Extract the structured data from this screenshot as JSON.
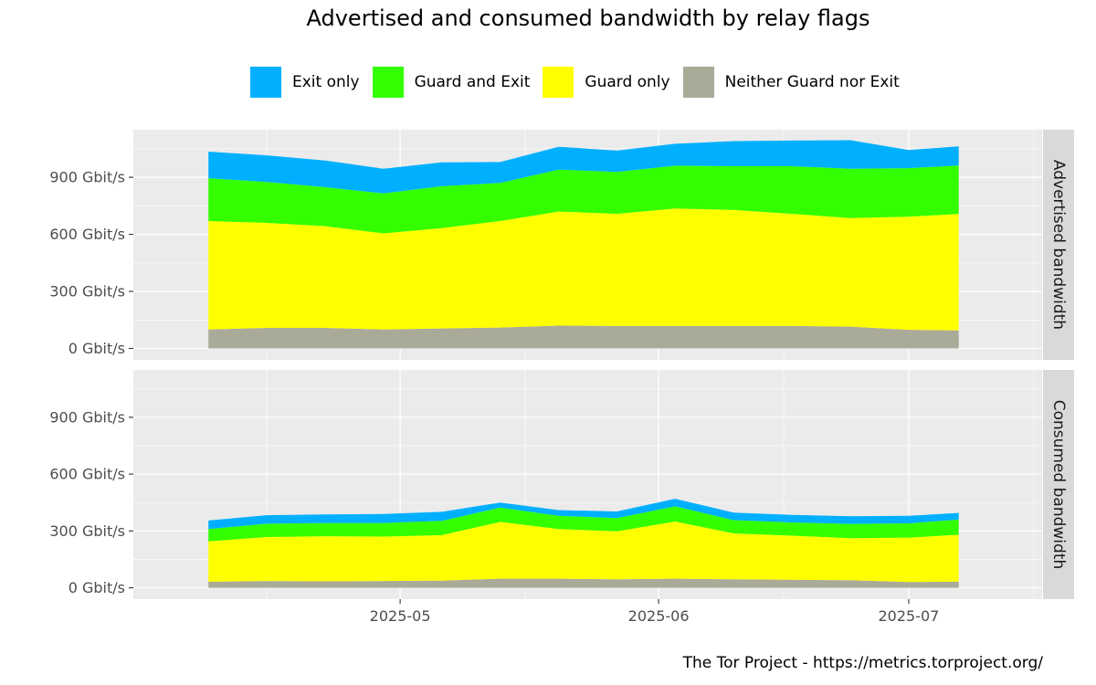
{
  "title": "Advertised and consumed bandwidth by relay flags",
  "caption": "The Tor Project - https://metrics.torproject.org/",
  "legend": [
    {
      "label": "Exit only",
      "color": "#00b0ff"
    },
    {
      "label": "Guard and Exit",
      "color": "#33ff00"
    },
    {
      "label": "Guard only",
      "color": "#ffff00"
    },
    {
      "label": "Neither Guard nor Exit",
      "color": "#aaaa99"
    }
  ],
  "colors": {
    "panel_bg": "#ebebeb",
    "grid_major": "#ffffff",
    "strip_bg": "#d9d9d9",
    "axis_text": "#4d4d4d"
  },
  "chart_data": {
    "type": "area",
    "stacked": true,
    "title": "Advertised and consumed bandwidth by relay flags",
    "xlabel": "",
    "ylabel": "",
    "x_ticks": [
      "2025-05",
      "2025-06",
      "2025-07"
    ],
    "y_ticks": [
      "0 Gbit/s",
      "300 Gbit/s",
      "600 Gbit/s",
      "900 Gbit/s"
    ],
    "ylim": [
      -60,
      1150
    ],
    "xlim": [
      "2025-03-30",
      "2025-07-17"
    ],
    "legend_position": "top",
    "grid": true,
    "x": [
      "2025-04-08",
      "2025-04-15",
      "2025-04-22",
      "2025-04-29",
      "2025-05-06",
      "2025-05-13",
      "2025-05-20",
      "2025-05-27",
      "2025-06-03",
      "2025-06-10",
      "2025-06-17",
      "2025-06-24",
      "2025-07-01",
      "2025-07-07"
    ],
    "panels": [
      {
        "name": "Advertised bandwidth",
        "series": [
          {
            "name": "Neither Guard nor Exit",
            "values": [
              100,
              108,
              108,
              100,
              105,
              110,
              120,
              118,
              118,
              118,
              118,
              115,
              98,
              95
            ]
          },
          {
            "name": "Guard only",
            "values": [
              570,
              552,
              535,
              505,
              528,
              560,
              600,
              590,
              618,
              610,
              590,
              570,
              595,
              612
            ]
          },
          {
            "name": "Guard and Exit",
            "values": [
              225,
              215,
              205,
              210,
              220,
              200,
              220,
              220,
              225,
              230,
              250,
              260,
              255,
              255
            ]
          },
          {
            "name": "Exit only",
            "values": [
              140,
              140,
              140,
              130,
              125,
              110,
              120,
              112,
              115,
              132,
              135,
              150,
              95,
              100
            ]
          }
        ]
      },
      {
        "name": "Consumed bandwidth",
        "series": [
          {
            "name": "Neither Guard nor Exit",
            "values": [
              32,
              36,
              34,
              36,
              38,
              48,
              48,
              45,
              48,
              45,
              42,
              40,
              30,
              32
            ]
          },
          {
            "name": "Guard only",
            "values": [
              213,
              232,
              238,
              234,
              240,
              300,
              262,
              253,
              302,
              242,
              233,
              222,
              235,
              248
            ]
          },
          {
            "name": "Guard and Exit",
            "values": [
              65,
              70,
              70,
              72,
              75,
              75,
              70,
              70,
              80,
              70,
              70,
              75,
              75,
              80
            ]
          },
          {
            "name": "Exit only",
            "values": [
              45,
              45,
              45,
              48,
              48,
              27,
              30,
              35,
              40,
              40,
              40,
              40,
              40,
              35
            ]
          }
        ]
      }
    ]
  }
}
